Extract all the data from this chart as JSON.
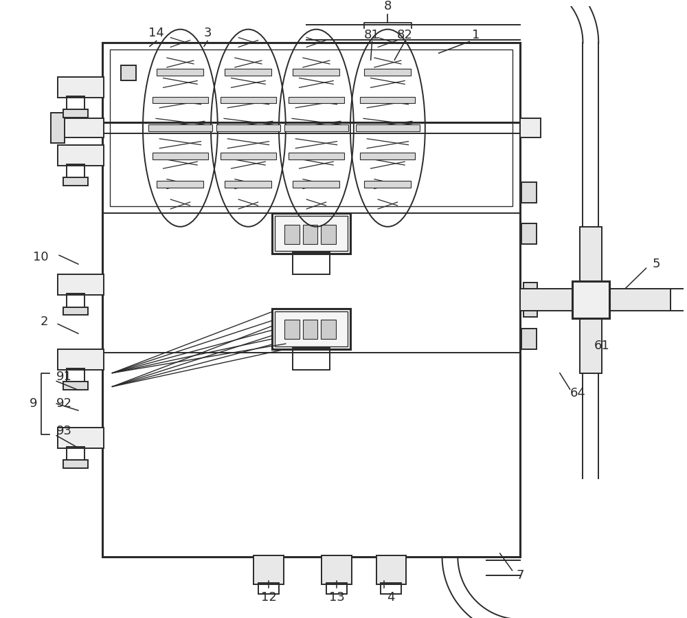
{
  "bg_color": "#ffffff",
  "lc": "#2a2a2a",
  "lw": 1.4,
  "tlw": 2.2,
  "fig_w": 10.0,
  "fig_h": 8.99,
  "label_fs": 13
}
